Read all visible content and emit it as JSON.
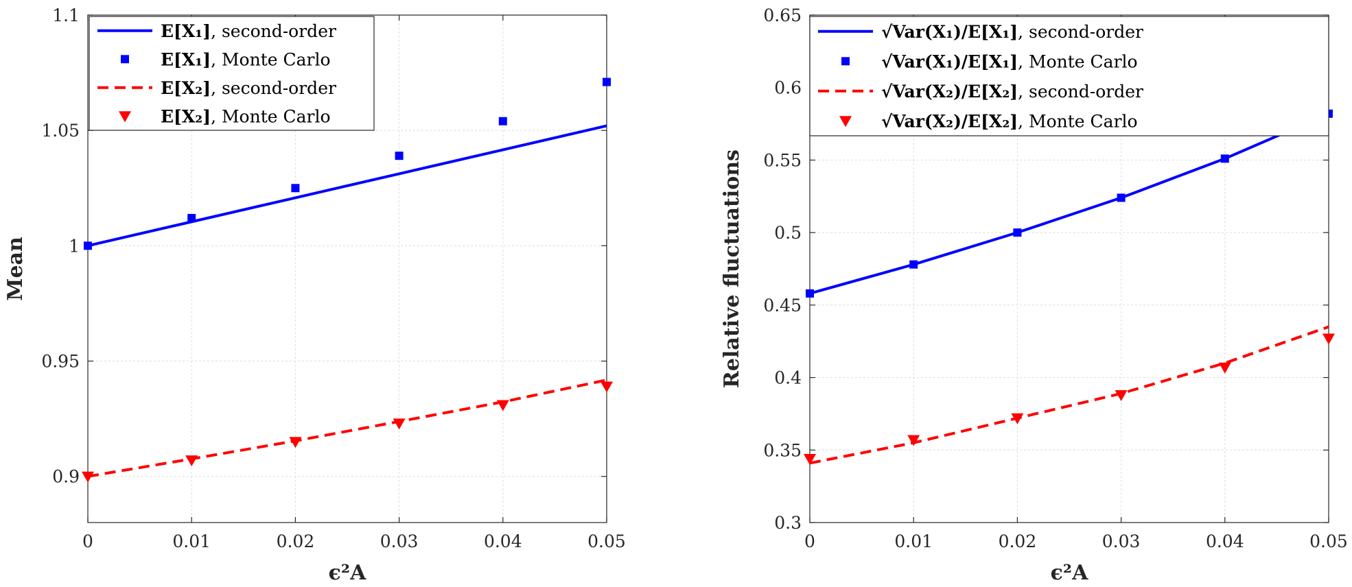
{
  "chart_data": [
    {
      "type": "line",
      "xlabel": "ϵ²A",
      "ylabel": "Mean",
      "xlim": [
        0,
        0.05
      ],
      "ylim": [
        0.88,
        1.1
      ],
      "xticks": [
        0,
        0.01,
        0.02,
        0.03,
        0.04,
        0.05
      ],
      "xtick_labels": [
        "0",
        "0.01",
        "0.02",
        "0.03",
        "0.04",
        "0.05"
      ],
      "yticks": [
        0.9,
        0.95,
        1,
        1.05,
        1.1
      ],
      "ytick_labels": [
        "0.9",
        "0.95",
        "1",
        "1.05",
        "1.1"
      ],
      "grid": true,
      "legend_position": "top-left",
      "x": [
        0,
        0.01,
        0.02,
        0.03,
        0.04,
        0.05
      ],
      "series": [
        {
          "name": "E[X₁], second-order",
          "legend_main": "E[X₁]",
          "legend_suffix": ", second-order",
          "style": "solid-line",
          "color": "#0000ff",
          "values": [
            1.0,
            1.0104,
            1.0208,
            1.0312,
            1.0416,
            1.052
          ]
        },
        {
          "name": "E[X₁], Monte Carlo",
          "legend_main": "E[X₁]",
          "legend_suffix": ", Monte Carlo",
          "style": "square-marker",
          "color": "#0000ff",
          "values": [
            1.0,
            1.012,
            1.025,
            1.039,
            1.054,
            1.071
          ]
        },
        {
          "name": "E[X₂], second-order",
          "legend_main": "E[X₂]",
          "legend_suffix": ", second-order",
          "style": "dashed-line",
          "color": "#ff0000",
          "values": [
            0.9,
            0.9076,
            0.9154,
            0.9238,
            0.9323,
            0.9418
          ]
        },
        {
          "name": "E[X₂], Monte Carlo",
          "legend_main": "E[X₂]",
          "legend_suffix": ", Monte Carlo",
          "style": "triangle-marker",
          "color": "#ff0000",
          "values": [
            0.9,
            0.907,
            0.915,
            0.923,
            0.931,
            0.939
          ]
        }
      ]
    },
    {
      "type": "line",
      "xlabel": "ϵ²A",
      "ylabel": "Relative fluctuations",
      "xlim": [
        0,
        0.05
      ],
      "ylim": [
        0.3,
        0.65
      ],
      "xticks": [
        0,
        0.01,
        0.02,
        0.03,
        0.04,
        0.05
      ],
      "xtick_labels": [
        "0",
        "0.01",
        "0.02",
        "0.03",
        "0.04",
        "0.05"
      ],
      "yticks": [
        0.3,
        0.35,
        0.4,
        0.45,
        0.5,
        0.55,
        0.6,
        0.65
      ],
      "ytick_labels": [
        "0.3",
        "0.35",
        "0.4",
        "0.45",
        "0.5",
        "0.55",
        "0.6",
        "0.65"
      ],
      "grid": true,
      "legend_position": "top-right",
      "x": [
        0,
        0.01,
        0.02,
        0.03,
        0.04,
        0.05
      ],
      "series": [
        {
          "name": "√Var(X₁)/E[X₁], second-order",
          "legend_main": "√Var(X₁)/E[X₁]",
          "legend_suffix": ", second-order",
          "style": "solid-line",
          "color": "#0000ff",
          "values": [
            0.458,
            0.478,
            0.5,
            0.524,
            0.551,
            0.582
          ]
        },
        {
          "name": "√Var(X₁)/E[X₁], Monte Carlo",
          "legend_main": "√Var(X₁)/E[X₁]",
          "legend_suffix": ", Monte Carlo",
          "style": "square-marker",
          "color": "#0000ff",
          "values": [
            0.458,
            0.478,
            0.5,
            0.524,
            0.551,
            0.582
          ]
        },
        {
          "name": "√Var(X₂)/E[X₂], second-order",
          "legend_main": "√Var(X₂)/E[X₂]",
          "legend_suffix": ", second-order",
          "style": "dashed-line",
          "color": "#ff0000",
          "values": [
            0.341,
            0.355,
            0.372,
            0.389,
            0.41,
            0.435
          ]
        },
        {
          "name": "√Var(X₂)/E[X₂], Monte Carlo",
          "legend_main": "√Var(X₂)/E[X₂]",
          "legend_suffix": ", Monte Carlo",
          "style": "triangle-marker",
          "color": "#ff0000",
          "values": [
            0.344,
            0.357,
            0.372,
            0.388,
            0.407,
            0.427
          ]
        }
      ]
    }
  ]
}
